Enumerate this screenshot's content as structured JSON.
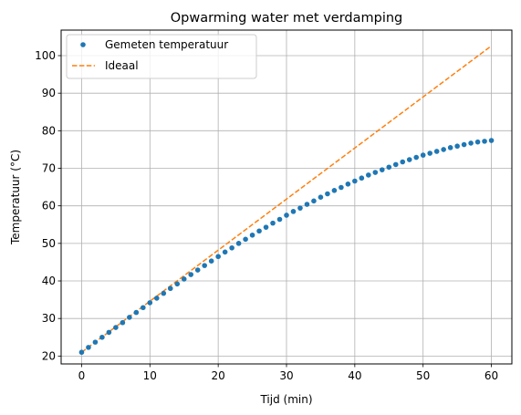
{
  "chart_data": {
    "type": "scatter",
    "title": "Opwarming water met verdamping",
    "xlabel": "Tijd (min)",
    "ylabel": "Temperatuur (°C)",
    "xlim": [
      -3,
      63
    ],
    "ylim": [
      17.9,
      106.8
    ],
    "xticks": [
      0,
      10,
      20,
      30,
      40,
      50,
      60
    ],
    "yticks": [
      20,
      30,
      40,
      50,
      60,
      70,
      80,
      90,
      100
    ],
    "grid": true,
    "legend_position": "top-left",
    "series": [
      {
        "name": "Gemeten temperatuur",
        "style": "points",
        "color": "#1f77b4",
        "x": [
          0,
          1,
          2,
          3,
          4,
          5,
          6,
          7,
          8,
          9,
          10,
          11,
          12,
          13,
          14,
          15,
          16,
          17,
          18,
          19,
          20,
          21,
          22,
          23,
          24,
          25,
          26,
          27,
          28,
          29,
          30,
          31,
          32,
          33,
          34,
          35,
          36,
          37,
          38,
          39,
          40,
          41,
          42,
          43,
          44,
          45,
          46,
          47,
          48,
          49,
          50,
          51,
          52,
          53,
          54,
          55,
          56,
          57,
          58,
          59,
          60
        ],
        "y": [
          21.0,
          22.3,
          23.7,
          25.0,
          26.3,
          27.6,
          28.9,
          30.3,
          31.6,
          32.9,
          34.2,
          35.4,
          36.7,
          38.0,
          39.2,
          40.5,
          41.7,
          42.9,
          44.1,
          45.3,
          46.5,
          47.7,
          48.8,
          50.0,
          51.1,
          52.2,
          53.3,
          54.3,
          55.4,
          56.4,
          57.5,
          58.5,
          59.4,
          60.4,
          61.3,
          62.3,
          63.2,
          64.1,
          64.9,
          65.8,
          66.6,
          67.4,
          68.2,
          68.9,
          69.6,
          70.3,
          71.0,
          71.7,
          72.3,
          72.9,
          73.5,
          74.0,
          74.5,
          75.0,
          75.5,
          75.9,
          76.3,
          76.7,
          77.0,
          77.2,
          77.4
        ]
      },
      {
        "name": "Ideaal",
        "style": "dashed-line",
        "color": "#ff7f0e",
        "x": [
          0,
          60
        ],
        "y": [
          21.0,
          102.6
        ]
      }
    ]
  }
}
